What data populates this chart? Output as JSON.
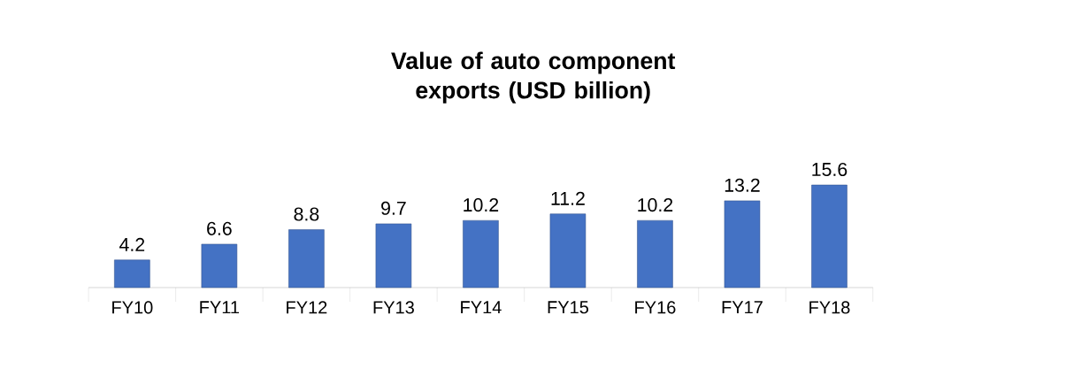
{
  "chart_data": {
    "type": "bar",
    "title": "Value of auto component exports (USD billion)",
    "categories": [
      "FY10",
      "FY11",
      "FY12",
      "FY13",
      "FY14",
      "FY15",
      "FY16",
      "FY17",
      "FY18"
    ],
    "values": [
      4.2,
      6.6,
      8.8,
      9.7,
      10.2,
      11.2,
      10.2,
      13.2,
      15.6
    ],
    "color": "#4472c4",
    "data_labels": true
  }
}
